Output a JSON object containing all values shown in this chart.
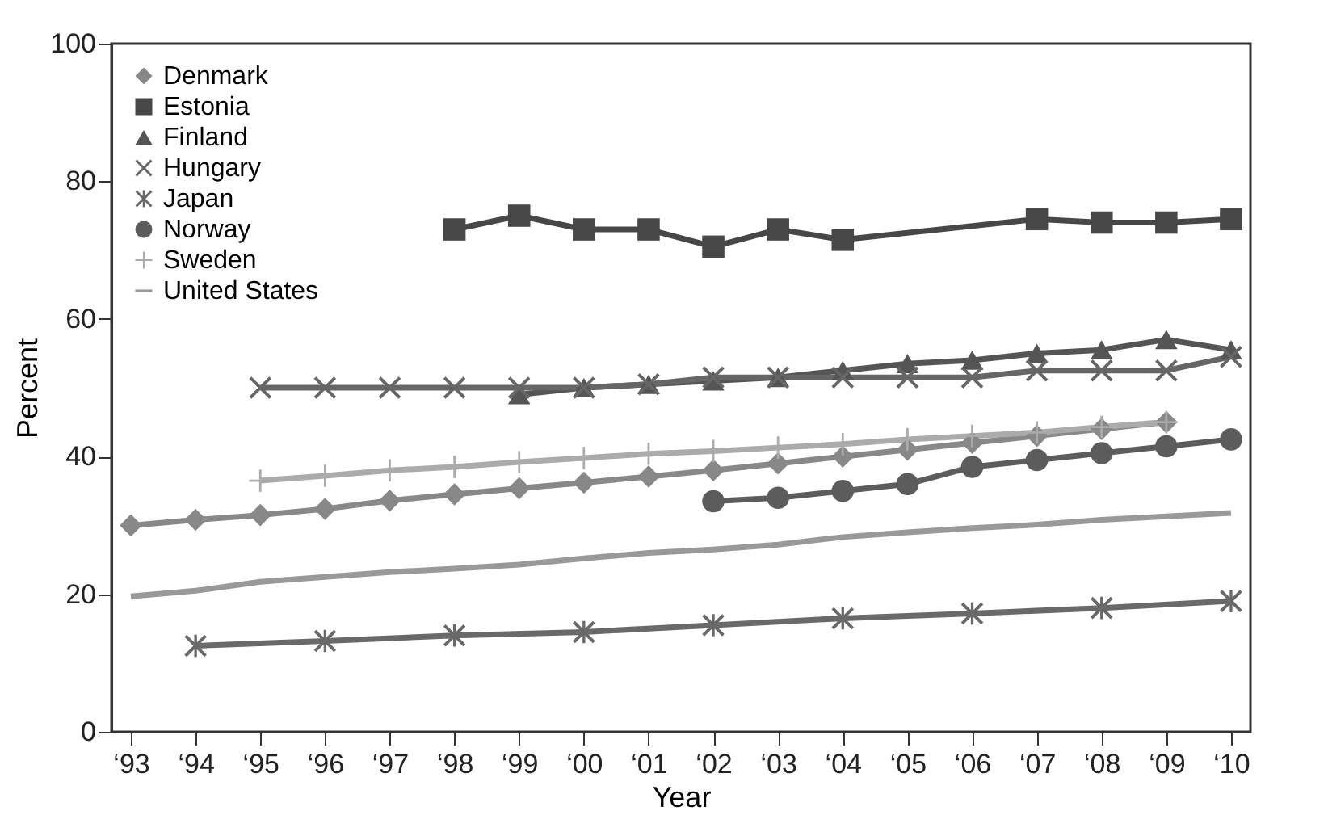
{
  "chart_data": {
    "type": "line",
    "xlabel": "Year",
    "ylabel": "Percent",
    "categories": [
      "‘93",
      "‘94",
      "‘95",
      "‘96",
      "‘97",
      "‘98",
      "‘99",
      "‘00",
      "‘01",
      "‘02",
      "‘03",
      "‘04",
      "‘05",
      "‘06",
      "‘07",
      "‘08",
      "‘09",
      "‘10"
    ],
    "ylim": [
      0,
      100
    ],
    "yticks": [
      0,
      20,
      40,
      60,
      80,
      100
    ],
    "grid": false,
    "legend": "top left",
    "series": [
      {
        "name": "Denmark",
        "color": "#888888",
        "marker": "diamond",
        "values": [
          30,
          30.8,
          31.5,
          32.4,
          33.6,
          34.5,
          35.4,
          36.2,
          37.1,
          38,
          39,
          40,
          41,
          42,
          43,
          44,
          45,
          null
        ]
      },
      {
        "name": "Estonia",
        "color": "#474747",
        "marker": "square",
        "values": [
          null,
          null,
          null,
          null,
          null,
          73,
          75,
          73,
          73,
          70.5,
          73,
          71.5,
          null,
          null,
          74.5,
          74,
          74,
          74.5
        ]
      },
      {
        "name": "Finland",
        "color": "#555555",
        "marker": "triangle",
        "values": [
          null,
          null,
          null,
          null,
          null,
          null,
          49,
          50,
          50.5,
          51,
          51.5,
          52.5,
          53.5,
          54,
          55,
          55.5,
          57,
          55.5
        ]
      },
      {
        "name": "Hungary",
        "color": "#666666",
        "marker": "cross",
        "values": [
          null,
          null,
          50,
          50,
          50,
          50,
          50,
          50,
          50.5,
          51.5,
          51.5,
          51.5,
          51.5,
          51.5,
          52.5,
          52.5,
          52.5,
          54.5
        ]
      },
      {
        "name": "Japan",
        "color": "#696969",
        "marker": "star",
        "values": [
          null,
          12.5,
          null,
          13.2,
          null,
          14,
          null,
          14.5,
          null,
          15.5,
          null,
          16.5,
          null,
          17.2,
          null,
          18,
          null,
          19
        ]
      },
      {
        "name": "Norway",
        "color": "#5c5c5c",
        "marker": "circle",
        "values": [
          null,
          null,
          null,
          null,
          null,
          null,
          null,
          null,
          null,
          33.5,
          34,
          35,
          36,
          38.5,
          39.5,
          40.5,
          41.5,
          42.5
        ]
      },
      {
        "name": "Sweden",
        "color": "#ababab",
        "marker": "plus",
        "values": [
          null,
          null,
          36.5,
          37.2,
          38,
          38.5,
          39.2,
          39.8,
          40.4,
          40.8,
          41.3,
          41.8,
          42.5,
          43,
          43.5,
          44.3,
          45,
          null
        ]
      },
      {
        "name": "United States",
        "color": "#999999",
        "marker": "none",
        "values": [
          19.7,
          20.5,
          21.8,
          22.5,
          23.2,
          23.7,
          24.3,
          25.2,
          26,
          26.5,
          27.2,
          28.3,
          29,
          29.6,
          30.1,
          30.8,
          31.3,
          31.8
        ]
      }
    ]
  }
}
